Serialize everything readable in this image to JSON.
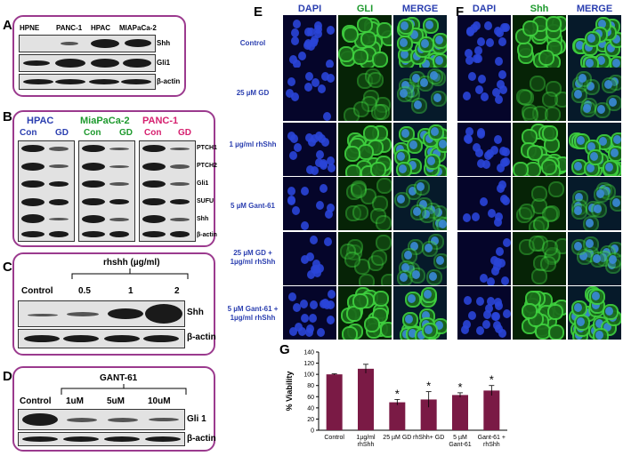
{
  "panel_labels": [
    "A",
    "B",
    "C",
    "D",
    "E",
    "F",
    "G"
  ],
  "panelA": {
    "lanes": [
      "HPNE",
      "PANC-1",
      "HPAC",
      "MIAPaCa-2"
    ],
    "rows": [
      "Shh",
      "Gli1",
      "β-actin"
    ]
  },
  "panelB": {
    "groups": [
      {
        "name": "HPAC",
        "color": "#2b3fb0"
      },
      {
        "name": "MiaPaCa-2",
        "color": "#1e9a2e"
      },
      {
        "name": "PANC-1",
        "color": "#d6206f"
      }
    ],
    "lane_con": "Con",
    "lane_gd": "GD",
    "rows": [
      "PTCH1",
      "PTCH2",
      "Gli1",
      "SUFU",
      "Shh",
      "β-actin"
    ]
  },
  "panelC": {
    "title": "rhshh (µg/ml)",
    "lanes": [
      "Control",
      "0.5",
      "1",
      "2"
    ],
    "rows": [
      "Shh",
      "β-actin"
    ]
  },
  "panelD": {
    "title": "GANT-61",
    "lanes": [
      "Control",
      "1uM",
      "5uM",
      "10uM"
    ],
    "rows": [
      "Gli 1",
      "β-actin"
    ]
  },
  "panelE": {
    "headers": [
      "DAPI",
      "GLI",
      "MERGE"
    ],
    "rows": [
      "Control",
      "25 µM GD",
      "1 µg/ml rhShh",
      "5 µM Gant-61",
      "25 µM GD +\n1µg/ml rhShh",
      "5 µM Gant-61 +\n1µg/ml rhShh"
    ]
  },
  "panelF": {
    "headers": [
      "DAPI",
      "Shh",
      "MERGE"
    ]
  },
  "chart_data": {
    "type": "bar",
    "categories": [
      "Control",
      "1µg/ml rhShh",
      "25 µM GD",
      "rhShh+ GD",
      "5 µM Gant-61",
      "Gant-61 + rhShh"
    ],
    "values": [
      100,
      110,
      50,
      55,
      63,
      71
    ],
    "errors": [
      1,
      8,
      5,
      14,
      4,
      9
    ],
    "significant": [
      false,
      false,
      true,
      true,
      true,
      true
    ],
    "ylabel": "% Viability",
    "ylim": [
      0,
      140
    ],
    "yticks": [
      0,
      20,
      40,
      60,
      80,
      100,
      120,
      140
    ],
    "bar_color": "#7a1a45",
    "grid": false
  },
  "sig_mark": "*"
}
